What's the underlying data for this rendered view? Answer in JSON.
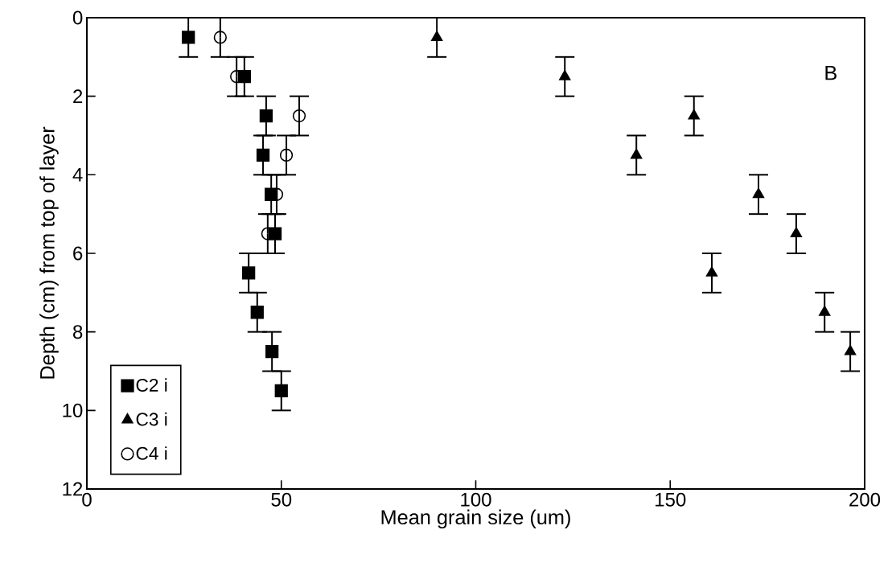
{
  "chart_data": {
    "type": "scatter",
    "xlabel": "Mean grain size (um)",
    "ylabel": "Depth (cm) from top of layer",
    "xlim": [
      0,
      200
    ],
    "ylim": [
      12,
      0
    ],
    "xticks": [
      0,
      50,
      100,
      150,
      200
    ],
    "yticks": [
      0,
      2,
      4,
      6,
      8,
      10,
      12
    ],
    "grid": false,
    "legend": "bottom left",
    "annotations": [
      "B"
    ],
    "series": [
      {
        "name": "C2 i",
        "color": "#000000",
        "marker": "square",
        "x": [
          26.1,
          40.5,
          46.1,
          45.3,
          47.4,
          48.4,
          41.6,
          43.8,
          47.6,
          50.0
        ],
        "values": [
          0.5,
          1.5,
          2.5,
          3.5,
          4.5,
          5.5,
          6.5,
          7.5,
          8.5,
          9.5
        ],
        "errors": [
          0.5,
          0.5,
          0.5,
          0.5,
          0.5,
          0.5,
          0.5,
          0.5,
          0.5,
          0.5
        ]
      },
      {
        "name": "C3 i",
        "color": "#000000",
        "marker": "triangle",
        "x": [
          90.0,
          122.9,
          156.1,
          141.3,
          172.7,
          182.4,
          160.7,
          189.7,
          196.3
        ],
        "values": [
          0.5,
          1.5,
          2.5,
          3.5,
          4.5,
          5.5,
          6.5,
          7.5,
          8.5
        ],
        "errors": [
          0.5,
          0.5,
          0.5,
          0.5,
          0.5,
          0.5,
          0.5,
          0.5,
          0.5
        ]
      },
      {
        "name": "C4 i",
        "color": "#000000",
        "marker": "circle",
        "x": [
          34.3,
          38.5,
          54.6,
          51.3,
          48.8,
          46.5
        ],
        "values": [
          0.5,
          1.5,
          2.5,
          3.5,
          4.5,
          5.5
        ],
        "errors": [
          0.5,
          0.5,
          0.5,
          0.5,
          0.5,
          0.5
        ]
      }
    ]
  }
}
